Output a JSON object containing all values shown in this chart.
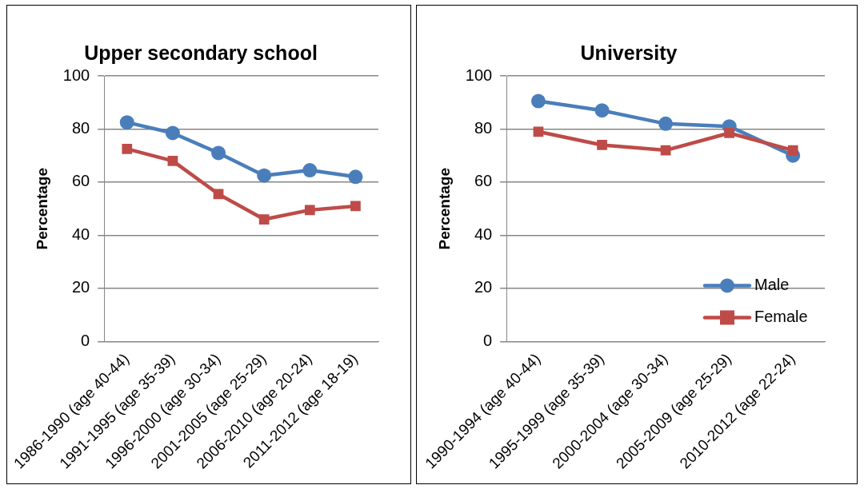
{
  "chart_data": [
    {
      "type": "line",
      "title": "Upper secondary school",
      "ylabel": "Percentage",
      "categories": [
        "1986-1990 (age 40-44)",
        "1991-1995 (age 35-39)",
        "1996-2000 (age 30-34)",
        "2001-2005 (age 25-29)",
        "2006-2010 (age 20-24)",
        "2011-2012 (age 18-19)"
      ],
      "series": [
        {
          "color": "#4a7ebb",
          "marker": "circle",
          "values": [
            82.5,
            78.5,
            71,
            62.5,
            64.5,
            62
          ]
        },
        {
          "color": "#be4b48",
          "marker": "square",
          "values": [
            72.5,
            68,
            55.5,
            46,
            49.5,
            51
          ]
        }
      ],
      "ylim": [
        0,
        100
      ],
      "yticks": [
        0,
        20,
        40,
        60,
        80,
        100
      ],
      "grid": "y",
      "legend": false
    },
    {
      "type": "line",
      "title": "University",
      "ylabel": "Percentage",
      "categories": [
        "1990-1994 (age 40-44)",
        "1995-1999 (age 35-39)",
        "2000-2004 (age 30-34)",
        "2005-2009 (age 25-29)",
        "2010-2012 (age 22-24)"
      ],
      "series": [
        {
          "name": "Male",
          "color": "#4a7ebb",
          "marker": "circle",
          "values": [
            90.5,
            87,
            82,
            81,
            70
          ]
        },
        {
          "name": "Female",
          "color": "#be4b48",
          "marker": "square",
          "values": [
            79,
            74,
            72,
            78.5,
            72
          ]
        }
      ],
      "ylim": [
        0,
        100
      ],
      "yticks": [
        0,
        20,
        40,
        60,
        80,
        100
      ],
      "grid": "y",
      "legend": "bottom right"
    }
  ]
}
